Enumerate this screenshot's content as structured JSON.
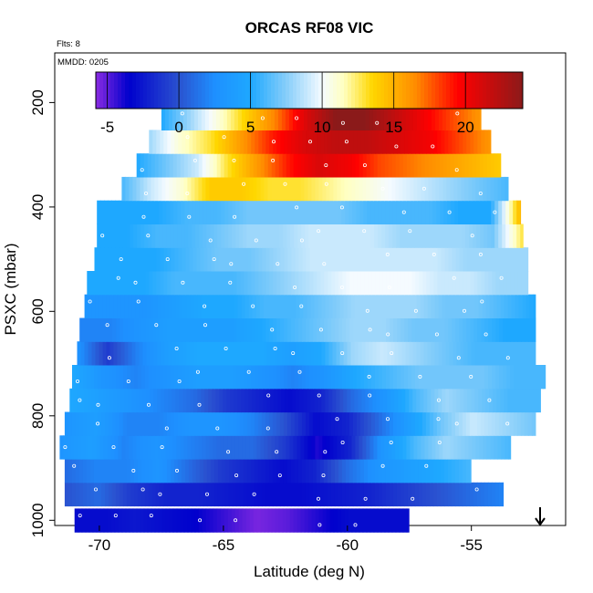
{
  "chart_data": {
    "type": "heatmap",
    "title": "ORCAS RF08 VIC",
    "flights_note": "Flts: 8",
    "date_note": "MMDD: 0205",
    "xlabel": "Latitude (deg N)",
    "ylabel": "PSXC (mbar)",
    "xlim": [
      -71.8,
      -51.2
    ],
    "ylim": [
      1010,
      105
    ],
    "y_reversed": true,
    "x_ticks": [
      -70,
      -65,
      -60,
      -55
    ],
    "y_ticks": [
      200,
      400,
      600,
      800,
      1000
    ],
    "colorbar": {
      "range": [
        -5.8,
        24
      ],
      "ticks": [
        -5,
        0,
        5,
        10,
        15,
        20
      ],
      "stops": [
        {
          "v": -5.8,
          "c": "#8a2be2"
        },
        {
          "v": -3.5,
          "c": "#0000cd"
        },
        {
          "v": 0,
          "c": "#2a52d0"
        },
        {
          "v": 2.5,
          "c": "#1e90ff"
        },
        {
          "v": 5,
          "c": "#1ea8ff"
        },
        {
          "v": 7.5,
          "c": "#87cefa"
        },
        {
          "v": 10,
          "c": "#f5fbff"
        },
        {
          "v": 11.5,
          "c": "#ffffc0"
        },
        {
          "v": 13.5,
          "c": "#ffd700"
        },
        {
          "v": 16.5,
          "c": "#ff8c00"
        },
        {
          "v": 19.5,
          "c": "#ff0000"
        },
        {
          "v": 24,
          "c": "#8b1a1a"
        }
      ]
    },
    "rows": [
      {
        "p": 1000,
        "x0": -71.0,
        "x1": -57.5,
        "vals": [
          -3,
          -3,
          -2.5,
          -3,
          -3.5,
          -4.5,
          -5.5,
          -5,
          -4,
          -3,
          -3,
          -3
        ]
      },
      {
        "p": 950,
        "x0": -71.4,
        "x1": -53.7,
        "vals": [
          0,
          1,
          -1,
          -2,
          -2,
          -2.5,
          -3,
          -3,
          -2.5,
          -2,
          -1,
          0,
          1,
          2
        ]
      },
      {
        "p": 905,
        "x0": -71.4,
        "x1": -55.0,
        "vals": [
          1,
          2,
          2,
          3,
          1,
          -1,
          -2,
          -3,
          -2,
          1,
          3,
          4,
          5,
          6
        ]
      },
      {
        "p": 860,
        "x0": -71.6,
        "x1": -53.4,
        "vals": [
          3,
          4,
          2,
          3,
          2,
          1,
          1,
          -1,
          -4,
          -2,
          3,
          6,
          8,
          7,
          6
        ]
      },
      {
        "p": 815,
        "x0": -71.4,
        "x1": -52.4,
        "vals": [
          3,
          4,
          2,
          2,
          3,
          3,
          2,
          0,
          -3,
          -2,
          1,
          4,
          7,
          9,
          8,
          7
        ]
      },
      {
        "p": 770,
        "x0": -71.2,
        "x1": -52.2,
        "vals": [
          5,
          4,
          3,
          2,
          1,
          -1,
          -2,
          -3,
          -2,
          1,
          3,
          6,
          8,
          7,
          6,
          6
        ]
      },
      {
        "p": 725,
        "x0": -71.1,
        "x1": -52.0,
        "vals": [
          5,
          3,
          2,
          3,
          4,
          4,
          3,
          2,
          3,
          5,
          6,
          7,
          7,
          7,
          6,
          6
        ]
      },
      {
        "p": 680,
        "x0": -70.9,
        "x1": -52.4,
        "vals": [
          3,
          -1,
          2,
          4,
          5,
          5,
          5,
          4,
          5,
          8,
          9,
          8,
          7,
          6,
          6,
          6
        ]
      },
      {
        "p": 635,
        "x0": -70.8,
        "x1": -52.4,
        "vals": [
          2,
          2,
          3,
          4,
          4,
          4,
          5,
          6,
          7,
          8,
          8,
          7,
          7,
          6,
          5,
          5
        ]
      },
      {
        "p": 590,
        "x0": -70.6,
        "x1": -52.4,
        "vals": [
          3,
          3,
          3,
          4,
          5,
          5,
          6,
          6,
          7,
          8,
          8,
          8,
          7,
          7,
          6,
          5
        ]
      },
      {
        "p": 545,
        "x0": -70.5,
        "x1": -52.7,
        "vals": [
          5,
          5,
          5,
          6,
          6,
          6,
          7,
          8,
          9,
          10,
          10,
          10,
          9,
          9,
          8,
          8
        ]
      },
      {
        "p": 500,
        "x0": -70.2,
        "x1": -52.7,
        "vals": [
          5,
          5,
          5,
          6,
          7,
          7,
          8,
          9,
          9,
          9,
          9,
          9,
          8,
          8,
          8
        ]
      },
      {
        "p": 455,
        "x0": -70.1,
        "x1": -52.9,
        "vals": [
          5,
          5,
          6,
          6,
          7,
          8,
          8,
          9,
          9,
          9,
          8,
          8,
          8,
          7,
          13
        ]
      },
      {
        "p": 410,
        "x0": -70.1,
        "x1": -53.0,
        "vals": [
          5,
          5,
          5,
          6,
          6,
          7,
          7,
          7,
          7,
          6,
          6,
          6,
          5,
          5,
          15
        ]
      },
      {
        "p": 365,
        "x0": -69.1,
        "x1": -53.5,
        "vals": [
          6,
          9,
          11,
          14,
          14,
          13,
          13,
          12,
          11,
          10,
          9,
          8,
          7,
          6
        ]
      },
      {
        "p": 320,
        "x0": -68.5,
        "x1": -53.8,
        "vals": [
          5,
          7,
          9,
          13,
          16,
          19,
          21,
          20,
          18,
          17,
          16,
          15,
          14
        ]
      },
      {
        "p": 275,
        "x0": -68.0,
        "x1": -54.2,
        "vals": [
          8,
          11,
          13,
          16,
          19,
          21,
          22,
          22,
          21,
          20,
          18,
          16
        ]
      },
      {
        "p": 230,
        "x0": -67.5,
        "x1": -54.6,
        "vals": [
          5,
          8,
          11,
          14,
          17,
          21,
          24,
          24,
          22,
          20,
          18,
          16
        ]
      },
      {
        "p": 185,
        "x0": -67.5,
        "x1": -54.6,
        "vals": [
          5,
          8,
          11,
          14,
          17,
          21,
          24,
          24,
          22,
          20,
          18,
          16
        ]
      }
    ]
  }
}
